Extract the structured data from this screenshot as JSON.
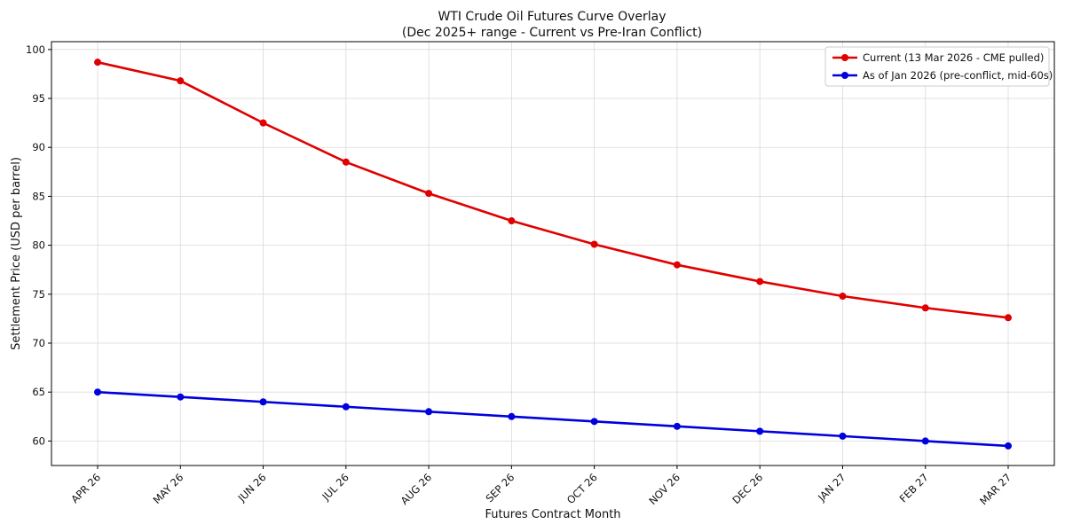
{
  "chart_data": {
    "type": "line",
    "title": "WTI Crude Oil Futures Curve Overlay",
    "subtitle": "(Dec 2025+ range - Current vs Pre-Iran Conflict)",
    "xlabel": "Futures Contract Month",
    "ylabel": "Settlement Price (USD per barrel)",
    "categories": [
      "APR 26",
      "MAY 26",
      "JUN 26",
      "JUL 26",
      "AUG 26",
      "SEP 26",
      "OCT 26",
      "NOV 26",
      "DEC 26",
      "JAN 27",
      "FEB 27",
      "MAR 27"
    ],
    "ylim": [
      57.5,
      100.8
    ],
    "yticks": [
      60,
      65,
      70,
      75,
      80,
      85,
      90,
      95,
      100
    ],
    "grid": true,
    "legend_position": "top-right",
    "series": [
      {
        "name": "Current (13 Mar 2026 - CME pulled)",
        "color": "#e00000",
        "values": [
          98.7,
          96.8,
          92.5,
          88.5,
          85.3,
          82.5,
          80.1,
          78.0,
          76.3,
          74.8,
          73.6,
          72.6
        ]
      },
      {
        "name": "As of Jan 2026 (pre-conflict, mid-60s)",
        "color": "#0000dd",
        "values": [
          65.0,
          64.5,
          64.0,
          63.5,
          63.0,
          62.5,
          62.0,
          61.5,
          61.0,
          60.5,
          60.0,
          59.5
        ]
      }
    ]
  }
}
